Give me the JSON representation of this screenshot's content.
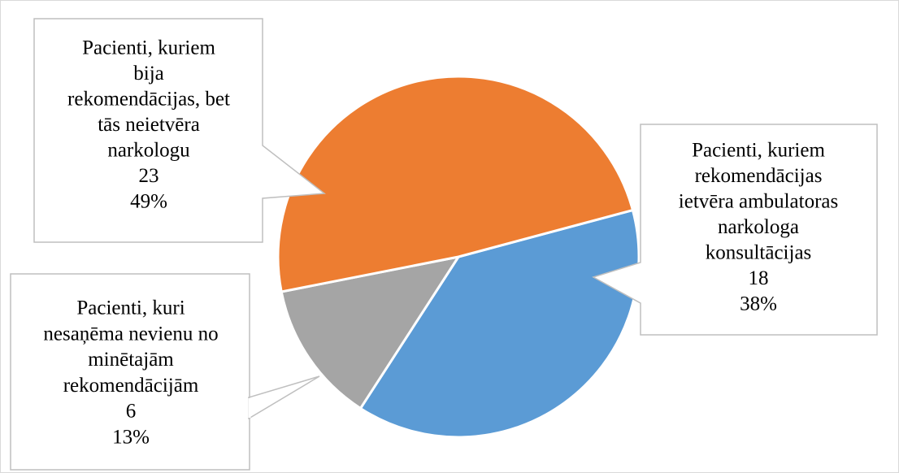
{
  "chart_data": {
    "type": "pie",
    "title": "",
    "slices": [
      {
        "label_lines": [
          "Pacienti, kuriem",
          "rekomendācijas",
          "ietvēra ambulatoras",
          "narkologa",
          "konsultācijas"
        ],
        "value": 18,
        "percent": "38%",
        "color": "#5b9bd5"
      },
      {
        "label_lines": [
          "Pacienti, kuri",
          "nesaņēma nevienu no",
          "minētajām",
          "rekomendācijām"
        ],
        "value": 6,
        "percent": "13%",
        "color": "#a5a5a5"
      },
      {
        "label_lines": [
          "Pacienti, kuriem",
          "bija",
          "rekomendācijas, bet",
          "tās neietvēra",
          "narkologu"
        ],
        "value": 23,
        "percent": "49%",
        "color": "#ed7d31"
      }
    ]
  }
}
